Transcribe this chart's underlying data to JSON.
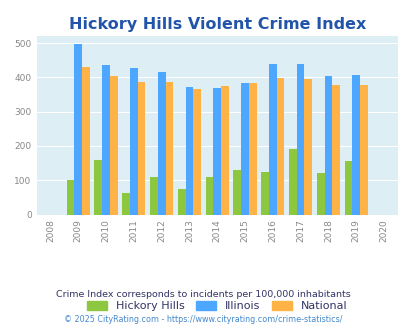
{
  "title": "Hickory Hills Violent Crime Index",
  "years": [
    2009,
    2010,
    2011,
    2012,
    2013,
    2014,
    2015,
    2016,
    2017,
    2018,
    2019
  ],
  "hickory_hills": [
    100,
    158,
    62,
    110,
    75,
    110,
    130,
    123,
    190,
    120,
    155
  ],
  "illinois": [
    498,
    435,
    428,
    415,
    372,
    370,
    383,
    438,
    438,
    405,
    408
  ],
  "national": [
    430,
    405,
    387,
    387,
    367,
    374,
    383,
    397,
    394,
    379,
    379
  ],
  "bar_colors": {
    "hickory_hills": "#8dc63f",
    "illinois": "#4da6ff",
    "national": "#ffb347"
  },
  "xlim": [
    2007.5,
    2020.5
  ],
  "ylim": [
    0,
    520
  ],
  "yticks": [
    0,
    100,
    200,
    300,
    400,
    500
  ],
  "xticks": [
    2008,
    2009,
    2010,
    2011,
    2012,
    2013,
    2014,
    2015,
    2016,
    2017,
    2018,
    2019,
    2020
  ],
  "plot_bg": "#ddeef5",
  "title_color": "#2255aa",
  "title_fontsize": 11.5,
  "legend_labels": [
    "Hickory Hills",
    "Illinois",
    "National"
  ],
  "legend_label_color": "#333366",
  "footnote1": "Crime Index corresponds to incidents per 100,000 inhabitants",
  "footnote2": "© 2025 CityRating.com - https://www.cityrating.com/crime-statistics/",
  "footnote2_color": "#4488cc",
  "bar_width": 0.28
}
